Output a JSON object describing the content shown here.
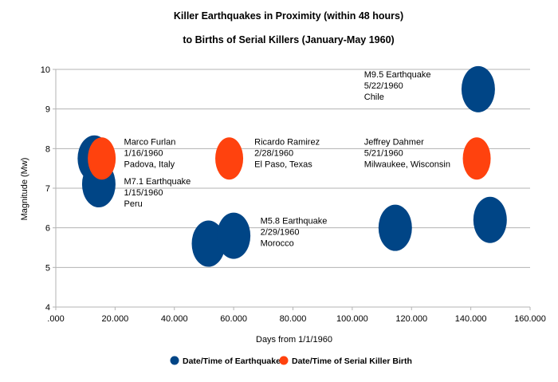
{
  "chart_data": {
    "type": "bubble",
    "title": "Killer Earthquakes in Proximity (within 48 hours)",
    "subtitle": "to Births of Serial Killers (January-May 1960)",
    "xlabel": "Days from 1/1/1960",
    "ylabel": "Magnitude (Mw)",
    "xlim": [
      0,
      160
    ],
    "ylim": [
      4,
      10
    ],
    "x_ticks": [
      0,
      20,
      40,
      60,
      80,
      100,
      120,
      140,
      160
    ],
    "x_tick_labels": [
      ".000",
      "20.000",
      "40.000",
      "60.000",
      "80.000",
      "100.000",
      "120.000",
      "140.000",
      "160.000"
    ],
    "y_ticks": [
      4,
      5,
      6,
      7,
      8,
      9,
      10
    ],
    "y_tick_labels": [
      "4",
      "5",
      "6",
      "7",
      "8",
      "9",
      "10"
    ],
    "grid": "horizontal",
    "legend_position": "bottom",
    "series": [
      {
        "name": "Date/Time of Earthquake",
        "color": "#004586",
        "points": [
          {
            "x": 13,
            "y": 7.75
          },
          {
            "x": 14.5,
            "y": 7.1
          },
          {
            "x": 51.5,
            "y": 5.6
          },
          {
            "x": 60,
            "y": 5.8
          },
          {
            "x": 114.5,
            "y": 6.0
          },
          {
            "x": 142.5,
            "y": 9.5
          },
          {
            "x": 146.5,
            "y": 6.2
          }
        ]
      },
      {
        "name": "Date/Time of Serial Killer Birth",
        "color": "#ff420e",
        "points": [
          {
            "x": 15.5,
            "y": 7.75
          },
          {
            "x": 58.5,
            "y": 7.75
          },
          {
            "x": 142,
            "y": 7.75
          }
        ]
      }
    ],
    "annotations": [
      {
        "lines": [
          "Marco Furlan",
          "1/16/1960",
          "Padova, Italy"
        ],
        "x": 23,
        "y": 8.1
      },
      {
        "lines": [
          "M7.1 Earthquake",
          "1/15/1960",
          "Peru"
        ],
        "x": 23,
        "y": 7.1
      },
      {
        "lines": [
          "Ricardo Ramirez",
          "2/28/1960",
          "El Paso, Texas"
        ],
        "x": 67,
        "y": 8.1
      },
      {
        "lines": [
          "M5.8 Earthquake",
          "2/29/1960",
          "Morocco"
        ],
        "x": 69,
        "y": 6.1
      },
      {
        "lines": [
          "Jeffrey Dahmer",
          "5/21/1960",
          "Milwaukee, Wisconsin"
        ],
        "x": 104,
        "y": 8.1
      },
      {
        "lines": [
          "M9.5 Earthquake",
          "5/22/1960",
          "Chile"
        ],
        "x": 104,
        "y": 9.8
      }
    ]
  }
}
